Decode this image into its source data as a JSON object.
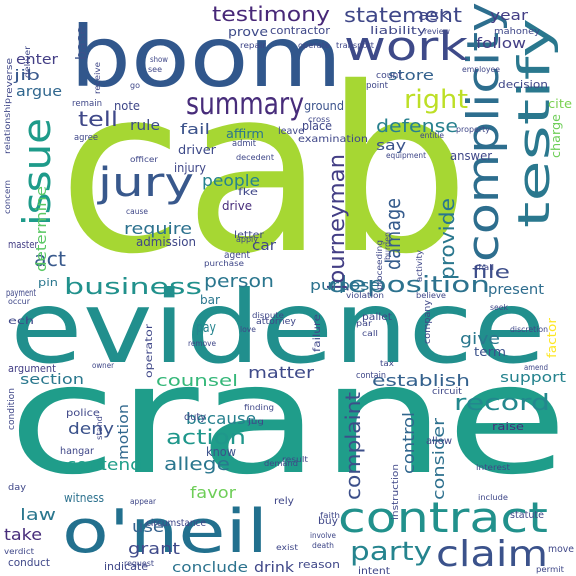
{
  "words": [
    {
      "text": "cab",
      "color": "#a6d733"
    },
    {
      "text": "crane",
      "color": "#1f9d8a"
    },
    {
      "text": "evidence",
      "color": "#218f8d"
    },
    {
      "text": "boom",
      "color": "#31578c"
    },
    {
      "text": "o'neil",
      "color": "#22708e"
    },
    {
      "text": "contract",
      "color": "#21918c"
    },
    {
      "text": "complicity",
      "color": "#2d6e8e"
    },
    {
      "text": "testify",
      "color": "#2a788e"
    },
    {
      "text": "work",
      "color": "#3e4a89"
    },
    {
      "text": "jury",
      "color": "#38588c"
    },
    {
      "text": "issue",
      "color": "#1e9b8a"
    },
    {
      "text": "summary",
      "color": "#472c7a"
    },
    {
      "text": "claim",
      "color": "#3b528b"
    },
    {
      "text": "deposition",
      "color": "#2c728e"
    },
    {
      "text": "journeyman",
      "color": "#433e85"
    },
    {
      "text": "testimony",
      "color": "#482878"
    },
    {
      "text": "statement",
      "color": "#3f4788"
    },
    {
      "text": "business",
      "color": "#21918c"
    },
    {
      "text": "party",
      "color": "#25848e"
    },
    {
      "text": "right",
      "color": "#bddf26"
    },
    {
      "text": "record",
      "color": "#23888e"
    },
    {
      "text": "provide",
      "color": "#2a778e"
    },
    {
      "text": "damage",
      "color": "#365c8d"
    },
    {
      "text": "complaint",
      "color": "#3c4f8a"
    },
    {
      "text": "action",
      "color": "#1f978b"
    },
    {
      "text": "tell",
      "color": "#3f4889"
    },
    {
      "text": "act",
      "color": "#38598c"
    },
    {
      "text": "person",
      "color": "#2a768e"
    },
    {
      "text": "defense",
      "color": "#27808e"
    },
    {
      "text": "establish",
      "color": "#34618d"
    },
    {
      "text": "determine",
      "color": "#5ac864"
    },
    {
      "text": "file",
      "color": "#3d4e8a"
    },
    {
      "text": "control",
      "color": "#31678e"
    },
    {
      "text": "consider",
      "color": "#2d708e"
    },
    {
      "text": "contend",
      "color": "#1f9e89"
    },
    {
      "text": "allege",
      "color": "#2a768e"
    },
    {
      "text": "counsel",
      "color": "#35b779"
    },
    {
      "text": "matter",
      "color": "#3e4a89"
    },
    {
      "text": "motion",
      "color": "#31688e"
    },
    {
      "text": "because",
      "color": "#27808e"
    },
    {
      "text": "people",
      "color": "#26828e"
    },
    {
      "text": "require",
      "color": "#2c718e"
    },
    {
      "text": "deny",
      "color": "#3b528b"
    },
    {
      "text": "favor",
      "color": "#6ece58"
    },
    {
      "text": "use",
      "color": "#34618d"
    },
    {
      "text": "grant",
      "color": "#3e4989"
    },
    {
      "text": "law",
      "color": "#2a778e"
    },
    {
      "text": "take",
      "color": "#472d7b"
    },
    {
      "text": "conclude",
      "color": "#2c738e"
    },
    {
      "text": "drink",
      "color": "#3f4788"
    },
    {
      "text": "give",
      "color": "#2a788e"
    },
    {
      "text": "store",
      "color": "#34618d"
    },
    {
      "text": "follow",
      "color": "#433e85"
    },
    {
      "text": "ask",
      "color": "#3f4889"
    },
    {
      "text": "year",
      "color": "#433e85"
    },
    {
      "text": "present",
      "color": "#2e6d8e"
    },
    {
      "text": "support",
      "color": "#25838e"
    },
    {
      "text": "purpose",
      "color": "#2c728e"
    },
    {
      "text": "section",
      "color": "#2a788e"
    },
    {
      "text": "fail",
      "color": "#3b528b"
    },
    {
      "text": "rule",
      "color": "#3d4d8a"
    },
    {
      "text": "car",
      "color": "#3f4788"
    },
    {
      "text": "say",
      "color": "#3a538b"
    },
    {
      "text": "pay",
      "color": "#25848e"
    },
    {
      "text": "base",
      "color": "#3b528b"
    },
    {
      "text": "jib",
      "color": "#38588c"
    },
    {
      "text": "enter",
      "color": "#433e85"
    },
    {
      "text": "argue",
      "color": "#31678e"
    },
    {
      "text": "prove",
      "color": "#3e4a89"
    },
    {
      "text": "affirm",
      "color": "#2a768e"
    },
    {
      "text": "know",
      "color": "#3b528b"
    },
    {
      "text": "witness",
      "color": "#2c718e"
    },
    {
      "text": "drive",
      "color": "#472d7b"
    },
    {
      "text": "injury",
      "color": "#3f4788"
    },
    {
      "text": "driver",
      "color": "#3e4a89"
    },
    {
      "text": "admission",
      "color": "#3f4788"
    },
    {
      "text": "bar",
      "color": "#2a778e"
    },
    {
      "text": "place",
      "color": "#3f4788"
    },
    {
      "text": "note",
      "color": "#3f4788"
    },
    {
      "text": "ground",
      "color": "#3b528b"
    },
    {
      "text": "answer",
      "color": "#3f4788"
    },
    {
      "text": "term",
      "color": "#3b528b"
    },
    {
      "text": "cite",
      "color": "#7ad151"
    },
    {
      "text": "charge",
      "color": "#6ece58"
    },
    {
      "text": "decision",
      "color": "#3f4788"
    },
    {
      "text": "liability",
      "color": "#3f4788"
    },
    {
      "text": "contractor",
      "color": "#3f4788"
    },
    {
      "text": "raise",
      "color": "#472d7b"
    },
    {
      "text": "factor",
      "color": "#fde725"
    },
    {
      "text": "letter",
      "color": "#3f4788"
    },
    {
      "text": "duty",
      "color": "#3f4788"
    },
    {
      "text": "agent",
      "color": "#3f4788"
    },
    {
      "text": "pin",
      "color": "#2a778e"
    },
    {
      "text": "argument",
      "color": "#433e85"
    },
    {
      "text": "master",
      "color": "#433e85"
    },
    {
      "text": "payment",
      "color": "#3f4788"
    },
    {
      "text": "police",
      "color": "#3f4788"
    },
    {
      "text": "hangar",
      "color": "#3f4788"
    },
    {
      "text": "conduct",
      "color": "#3f4788"
    },
    {
      "text": "indicate",
      "color": "#3f4788"
    },
    {
      "text": "reason",
      "color": "#3f4788"
    },
    {
      "text": "intent",
      "color": "#3f4788"
    },
    {
      "text": "move",
      "color": "#3f4788"
    },
    {
      "text": "statute",
      "color": "#3f4788"
    },
    {
      "text": "instruction",
      "color": "#3f4788"
    },
    {
      "text": "allow",
      "color": "#3f4788"
    },
    {
      "text": "company",
      "color": "#3f4788"
    },
    {
      "text": "failure",
      "color": "#3f4788"
    },
    {
      "text": "attorney",
      "color": "#3f4788"
    },
    {
      "text": "operator",
      "color": "#3f4788"
    },
    {
      "text": "circumstance",
      "color": "#3f4788"
    },
    {
      "text": "rely",
      "color": "#3f4788"
    },
    {
      "text": "buy",
      "color": "#3f4788"
    },
    {
      "text": "pallet",
      "color": "#3f4788"
    },
    {
      "text": "contain",
      "color": "#3f4788"
    },
    {
      "text": "remain",
      "color": "#3f4788"
    },
    {
      "text": "agree",
      "color": "#3f4788"
    },
    {
      "text": "admit",
      "color": "#3f4788"
    },
    {
      "text": "leave",
      "color": "#3f4788"
    },
    {
      "text": "examination",
      "color": "#3f4788"
    },
    {
      "text": "mahoney",
      "color": "#3f4788"
    },
    {
      "text": "reverse",
      "color": "#3f4788"
    },
    {
      "text": "deliver",
      "color": "#3f4788"
    },
    {
      "text": "employee",
      "color": "#3f4788"
    },
    {
      "text": "count",
      "color": "#3f4788"
    },
    {
      "text": "point",
      "color": "#3f4788"
    },
    {
      "text": "circuit",
      "color": "#3f4788"
    },
    {
      "text": "condition",
      "color": "#3f4788"
    },
    {
      "text": "day",
      "color": "#3f4788"
    },
    {
      "text": "verdict",
      "color": "#3f4788"
    },
    {
      "text": "exist",
      "color": "#3f4788"
    },
    {
      "text": "include",
      "color": "#3f4788"
    },
    {
      "text": "shall",
      "color": "#3f4788"
    },
    {
      "text": "discretion",
      "color": "#3f4788"
    },
    {
      "text": "seek",
      "color": "#3f4788"
    },
    {
      "text": "amend",
      "color": "#3f4788"
    },
    {
      "text": "interest",
      "color": "#3f4788"
    },
    {
      "text": "result",
      "color": "#3f4788"
    },
    {
      "text": "finding",
      "color": "#3f4788"
    },
    {
      "text": "appear",
      "color": "#3f4788"
    },
    {
      "text": "request",
      "color": "#3f4788"
    },
    {
      "text": "remove",
      "color": "#3f4788"
    },
    {
      "text": "violation",
      "color": "#3f4788"
    },
    {
      "text": "believe",
      "color": "#3f4788"
    },
    {
      "text": "burden",
      "color": "#3f4788"
    },
    {
      "text": "activity",
      "color": "#3f4788"
    },
    {
      "text": "proceeding",
      "color": "#3f4788"
    },
    {
      "text": "entitle",
      "color": "#3f4788"
    },
    {
      "text": "equipment",
      "color": "#3f4788"
    },
    {
      "text": "owner",
      "color": "#3f4788"
    },
    {
      "text": "concern",
      "color": "#3f4788"
    },
    {
      "text": "go",
      "color": "#3f4788"
    },
    {
      "text": "show",
      "color": "#3f4788"
    },
    {
      "text": "see",
      "color": "#3f4788"
    },
    {
      "text": "repair",
      "color": "#3f4788"
    },
    {
      "text": "operate",
      "color": "#3f4788"
    },
    {
      "text": "transport",
      "color": "#3f4788"
    },
    {
      "text": "review",
      "color": "#3f4788"
    },
    {
      "text": "property",
      "color": "#3f4788"
    },
    {
      "text": "cross",
      "color": "#3f4788"
    },
    {
      "text": "love",
      "color": "#3f4788"
    },
    {
      "text": "call",
      "color": "#3f4788"
    },
    {
      "text": "par",
      "color": "#3f4788"
    },
    {
      "text": "tax",
      "color": "#3f4788"
    },
    {
      "text": "dispute",
      "color": "#3f4788"
    },
    {
      "text": "purchase",
      "color": "#3f4788"
    },
    {
      "text": "apply",
      "color": "#3f4788"
    },
    {
      "text": "decedent",
      "color": "#3f4788"
    },
    {
      "text": "officer",
      "color": "#3f4788"
    },
    {
      "text": "cause",
      "color": "#3f4788"
    },
    {
      "text": "demand",
      "color": "#3f4788"
    },
    {
      "text": "faith",
      "color": "#3f4788"
    },
    {
      "text": "involve",
      "color": "#3f4788"
    },
    {
      "text": "death",
      "color": "#3f4788"
    },
    {
      "text": "permit",
      "color": "#3f4788"
    },
    {
      "text": "stand",
      "color": "#3f4788"
    },
    {
      "text": "relationship",
      "color": "#3f4788"
    },
    {
      "text": "fke",
      "color": "#3f4788"
    },
    {
      "text": "ech",
      "color": "#3f4788"
    },
    {
      "text": "occur",
      "color": "#3f4788"
    },
    {
      "text": "receive",
      "color": "#3f4788"
    },
    {
      "text": "jug",
      "color": "#3f4788"
    }
  ]
}
